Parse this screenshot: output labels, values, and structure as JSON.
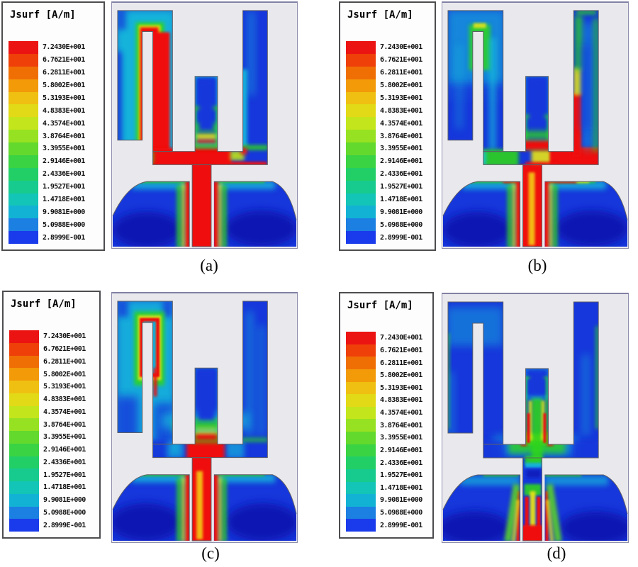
{
  "figure": {
    "legend_title": "Jsurf [A/m]",
    "legend_entries": [
      {
        "value": "7.2430E+001",
        "color": "#ec1313"
      },
      {
        "value": "6.7621E+001",
        "color": "#ee4008"
      },
      {
        "value": "6.2811E+001",
        "color": "#f06f05"
      },
      {
        "value": "5.8002E+001",
        "color": "#f29a08"
      },
      {
        "value": "5.3193E+001",
        "color": "#efc011"
      },
      {
        "value": "4.8383E+001",
        "color": "#e2da16"
      },
      {
        "value": "4.3574E+001",
        "color": "#c3e51c"
      },
      {
        "value": "3.8764E+001",
        "color": "#96e222"
      },
      {
        "value": "3.3955E+001",
        "color": "#63d92d"
      },
      {
        "value": "2.9146E+001",
        "color": "#3ad343"
      },
      {
        "value": "2.4336E+001",
        "color": "#22cf67"
      },
      {
        "value": "1.9527E+001",
        "color": "#17cb8f"
      },
      {
        "value": "1.4718E+001",
        "color": "#13c5b6"
      },
      {
        "value": "9.9081E+000",
        "color": "#12b2d5"
      },
      {
        "value": "5.0988E+000",
        "color": "#1c7fe2"
      },
      {
        "value": "2.8999E-001",
        "color": "#1a3beb"
      }
    ],
    "panels": [
      {
        "id": "a",
        "caption": "(a)"
      },
      {
        "id": "b",
        "caption": "(b)"
      },
      {
        "id": "c",
        "caption": "(c)"
      },
      {
        "id": "d",
        "caption": "(d)"
      }
    ],
    "palette": {
      "metal_blue": "#1637db",
      "dark_blue": "#0a17b2",
      "cyan": "#17c9da",
      "green": "#2fd41f",
      "yellow": "#e8e414",
      "hot_red": "#f01008",
      "plot_bg": "#e9e9ed"
    }
  }
}
